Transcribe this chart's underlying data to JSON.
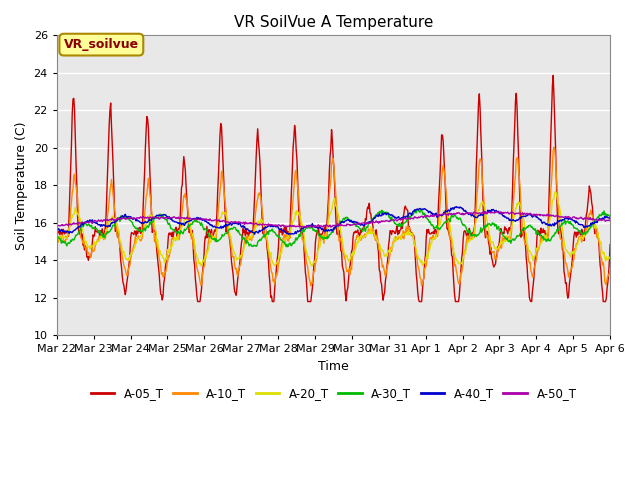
{
  "title": "VR SoilVue A Temperature",
  "xlabel": "Time",
  "ylabel": "Soil Temperature (C)",
  "ylim": [
    10,
    26
  ],
  "yticks": [
    10,
    12,
    14,
    16,
    18,
    20,
    22,
    24,
    26
  ],
  "plot_bg": "#e8e8e8",
  "box_label": "VR_soilvue",
  "box_bg": "#ffff99",
  "box_border": "#aa8800",
  "series_colors": {
    "A-05_T": "#cc0000",
    "A-10_T": "#ff8800",
    "A-20_T": "#dddd00",
    "A-30_T": "#00bb00",
    "A-40_T": "#0000cc",
    "A-50_T": "#aa00aa"
  },
  "date_labels": [
    "Mar 22",
    "Mar 23",
    "Mar 24",
    "Mar 25",
    "Mar 26",
    "Mar 27",
    "Mar 28",
    "Mar 29",
    "Mar 30",
    "Mar 31",
    "Apr 1",
    "Apr 2",
    "Apr 3",
    "Apr 4",
    "Apr 5",
    "Apr 6"
  ],
  "num_days": 15
}
